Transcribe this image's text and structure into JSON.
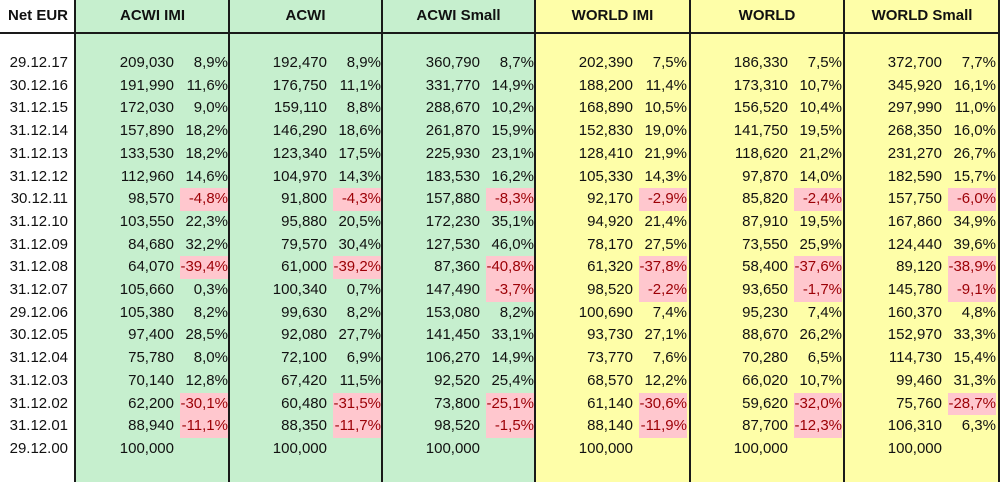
{
  "headers": [
    "Net EUR",
    "ACWI IMI",
    "ACWI",
    "ACWI Small",
    "WORLD IMI",
    "WORLD",
    "WORLD Small"
  ],
  "colors": {
    "green_fill": "#c6efce",
    "yellow_fill": "#fefea8",
    "negative_fill": "#ffc7ce",
    "negative_text": "#9c0006"
  },
  "rows": [
    {
      "date": "29.12.17",
      "vals": [
        "209,030",
        "8,9%",
        "192,470",
        "8,9%",
        "360,790",
        "8,7%",
        "202,390",
        "7,5%",
        "186,330",
        "7,5%",
        "372,700",
        "7,7%"
      ]
    },
    {
      "date": "30.12.16",
      "vals": [
        "191,990",
        "11,6%",
        "176,750",
        "11,1%",
        "331,770",
        "14,9%",
        "188,200",
        "11,4%",
        "173,310",
        "10,7%",
        "345,920",
        "16,1%"
      ]
    },
    {
      "date": "31.12.15",
      "vals": [
        "172,030",
        "9,0%",
        "159,110",
        "8,8%",
        "288,670",
        "10,2%",
        "168,890",
        "10,5%",
        "156,520",
        "10,4%",
        "297,990",
        "11,0%"
      ]
    },
    {
      "date": "31.12.14",
      "vals": [
        "157,890",
        "18,2%",
        "146,290",
        "18,6%",
        "261,870",
        "15,9%",
        "152,830",
        "19,0%",
        "141,750",
        "19,5%",
        "268,350",
        "16,0%"
      ]
    },
    {
      "date": "31.12.13",
      "vals": [
        "133,530",
        "18,2%",
        "123,340",
        "17,5%",
        "225,930",
        "23,1%",
        "128,410",
        "21,9%",
        "118,620",
        "21,2%",
        "231,270",
        "26,7%"
      ]
    },
    {
      "date": "31.12.12",
      "vals": [
        "112,960",
        "14,6%",
        "104,970",
        "14,3%",
        "183,530",
        "16,2%",
        "105,330",
        "14,3%",
        "97,870",
        "14,0%",
        "182,590",
        "15,7%"
      ]
    },
    {
      "date": "30.12.11",
      "vals": [
        "98,570",
        "-4,8%",
        "91,800",
        "-4,3%",
        "157,880",
        "-8,3%",
        "92,170",
        "-2,9%",
        "85,820",
        "-2,4%",
        "157,750",
        "-6,0%"
      ]
    },
    {
      "date": "31.12.10",
      "vals": [
        "103,550",
        "22,3%",
        "95,880",
        "20,5%",
        "172,230",
        "35,1%",
        "94,920",
        "21,4%",
        "87,910",
        "19,5%",
        "167,860",
        "34,9%"
      ]
    },
    {
      "date": "31.12.09",
      "vals": [
        "84,680",
        "32,2%",
        "79,570",
        "30,4%",
        "127,530",
        "46,0%",
        "78,170",
        "27,5%",
        "73,550",
        "25,9%",
        "124,440",
        "39,6%"
      ]
    },
    {
      "date": "31.12.08",
      "vals": [
        "64,070",
        "-39,4%",
        "61,000",
        "-39,2%",
        "87,360",
        "-40,8%",
        "61,320",
        "-37,8%",
        "58,400",
        "-37,6%",
        "89,120",
        "-38,9%"
      ]
    },
    {
      "date": "31.12.07",
      "vals": [
        "105,660",
        "0,3%",
        "100,340",
        "0,7%",
        "147,490",
        "-3,7%",
        "98,520",
        "-2,2%",
        "93,650",
        "-1,7%",
        "145,780",
        "-9,1%"
      ]
    },
    {
      "date": "29.12.06",
      "vals": [
        "105,380",
        "8,2%",
        "99,630",
        "8,2%",
        "153,080",
        "8,2%",
        "100,690",
        "7,4%",
        "95,230",
        "7,4%",
        "160,370",
        "4,8%"
      ]
    },
    {
      "date": "30.12.05",
      "vals": [
        "97,400",
        "28,5%",
        "92,080",
        "27,7%",
        "141,450",
        "33,1%",
        "93,730",
        "27,1%",
        "88,670",
        "26,2%",
        "152,970",
        "33,3%"
      ]
    },
    {
      "date": "31.12.04",
      "vals": [
        "75,780",
        "8,0%",
        "72,100",
        "6,9%",
        "106,270",
        "14,9%",
        "73,770",
        "7,6%",
        "70,280",
        "6,5%",
        "114,730",
        "15,4%"
      ]
    },
    {
      "date": "31.12.03",
      "vals": [
        "70,140",
        "12,8%",
        "67,420",
        "11,5%",
        "92,520",
        "25,4%",
        "68,570",
        "12,2%",
        "66,020",
        "10,7%",
        "99,460",
        "31,3%"
      ]
    },
    {
      "date": "31.12.02",
      "vals": [
        "62,200",
        "-30,1%",
        "60,480",
        "-31,5%",
        "73,800",
        "-25,1%",
        "61,140",
        "-30,6%",
        "59,620",
        "-32,0%",
        "75,760",
        "-28,7%"
      ]
    },
    {
      "date": "31.12.01",
      "vals": [
        "88,940",
        "-11,1%",
        "88,350",
        "-11,7%",
        "98,520",
        "-1,5%",
        "88,140",
        "-11,9%",
        "87,700",
        "-12,3%",
        "106,310",
        "6,3%"
      ]
    },
    {
      "date": "29.12.00",
      "vals": [
        "100,000",
        "",
        "100,000",
        "",
        "100,000",
        "",
        "100,000",
        "",
        "100,000",
        "",
        "100,000",
        ""
      ]
    }
  ]
}
